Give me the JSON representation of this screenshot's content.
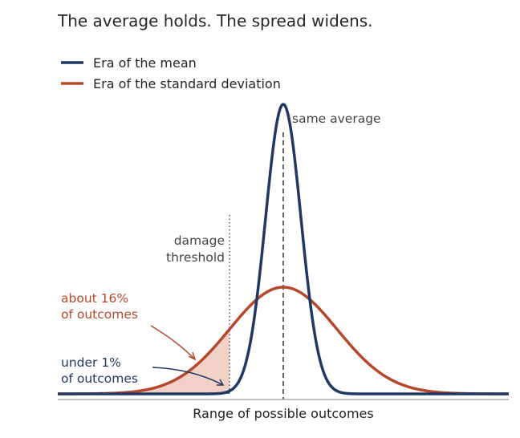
{
  "chart_data": {
    "type": "line",
    "title": "The average holds. The spread widens.",
    "xlabel": "Range of possible outcomes",
    "ylabel": "",
    "grid": false,
    "legend_placement": "top-left",
    "x_range": [
      -4.2,
      4.2
    ],
    "mean": 0,
    "threshold": -1,
    "series": [
      {
        "name": "Era of the mean",
        "distribution": "normal",
        "mean": 0,
        "sd": 0.33,
        "color": "#1f3864",
        "tail_share_below_threshold": "under 1%"
      },
      {
        "name": "Era of the standard deviation",
        "distribution": "normal",
        "mean": 0,
        "sd": 1.0,
        "color": "#b5482a",
        "tail_share_below_threshold": "about 16%"
      }
    ],
    "annotations": {
      "mean_line": "same average",
      "threshold_line": [
        "damage",
        "threshold"
      ],
      "wide_tail": [
        "about 16%",
        "of outcomes"
      ],
      "narrow_tail": [
        "under 1%",
        "of outcomes"
      ]
    },
    "colors": {
      "text": "#262626",
      "threshold_fill": "#e9b9a8",
      "narrow_fill": "#2f4d7e",
      "axis": "#9a9a9a",
      "mean_line": "#222222",
      "threshold_line": "#555555"
    }
  }
}
